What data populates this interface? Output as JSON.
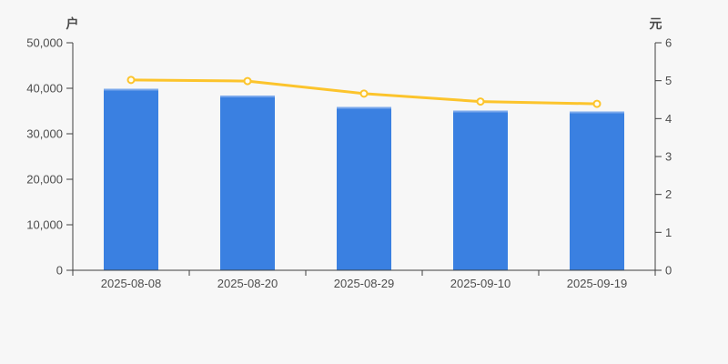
{
  "page": {
    "background": "#f7f7f7"
  },
  "chart_data": {
    "type": "combo",
    "categories": [
      "2025-08-08",
      "2025-08-20",
      "2025-08-29",
      "2025-09-10",
      "2025-09-19"
    ],
    "series": [
      {
        "name": "bar-series",
        "type": "bar",
        "axis": "left",
        "unit": "户",
        "color": "#3a80e1",
        "top_edge_color": "#7aa8ec",
        "values": [
          39900,
          38400,
          35900,
          35100,
          34900
        ]
      },
      {
        "name": "line-series",
        "type": "line",
        "axis": "right",
        "unit": "元",
        "color": "#fcc42c",
        "marker_fill": "#fffdf2",
        "values": [
          5.02,
          4.99,
          4.66,
          4.45,
          4.39
        ]
      }
    ],
    "left_axis": {
      "label": "户",
      "min": 0,
      "max": 50000,
      "ticks": [
        "0",
        "10,000",
        "20,000",
        "30,000",
        "40,000",
        "50,000"
      ]
    },
    "right_axis": {
      "label": "元",
      "min": 0,
      "max": 6,
      "ticks": [
        "0",
        "1",
        "2",
        "3",
        "4",
        "5",
        "6"
      ]
    },
    "legend": "none",
    "grid": false,
    "axis_color": "#3f3f3f",
    "tick_label_color": "#4d4d4d"
  }
}
